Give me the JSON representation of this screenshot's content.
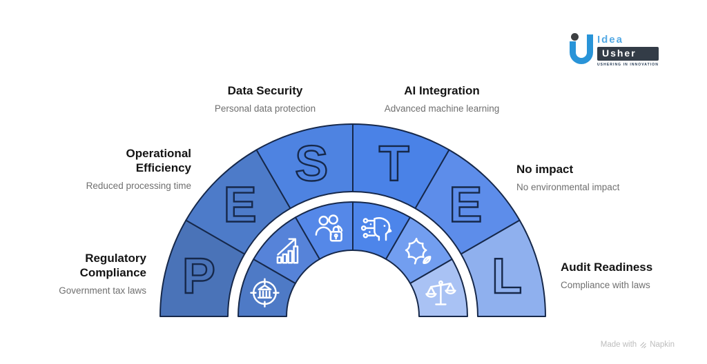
{
  "logo": {
    "brand_top": "Idea",
    "brand_bottom": "Usher",
    "tagline": "USHERING IN INNOVATION"
  },
  "footer": {
    "made_with": "Made with",
    "brand": "Napkin"
  },
  "diagram": {
    "type": "pestel-semicircle",
    "stroke_color": "#16284a",
    "icon_color": "#ffffff",
    "segments": [
      {
        "letter": "P",
        "title": "Regulatory Compliance",
        "subtitle": "Government tax laws",
        "outer_color": "#4a73b8",
        "inner_color": "#4e7ac6",
        "icon": "bank-target-icon"
      },
      {
        "letter": "E",
        "title": "Operational Efficiency",
        "subtitle": "Reduced processing time",
        "outer_color": "#4d7bc9",
        "inner_color": "#5683d9",
        "icon": "growth-chart-icon"
      },
      {
        "letter": "S",
        "title": "Data Security",
        "subtitle": "Personal data protection",
        "outer_color": "#4e83e1",
        "inner_color": "#5588e8",
        "icon": "people-lock-icon"
      },
      {
        "letter": "T",
        "title": "AI Integration",
        "subtitle": "Advanced machine learning",
        "outer_color": "#4a82e7",
        "inner_color": "#4d85ea",
        "icon": "ai-head-icon"
      },
      {
        "letter": "E",
        "title": "No impact",
        "subtitle": "No environmental impact",
        "outer_color": "#5d8dea",
        "inner_color": "#729ef0",
        "icon": "leaf-icon"
      },
      {
        "letter": "L",
        "title": "Audit Readiness",
        "subtitle": "Compliance with laws",
        "outer_color": "#8fb0ee",
        "inner_color": "#a9c2f4",
        "icon": "scales-icon"
      }
    ]
  }
}
